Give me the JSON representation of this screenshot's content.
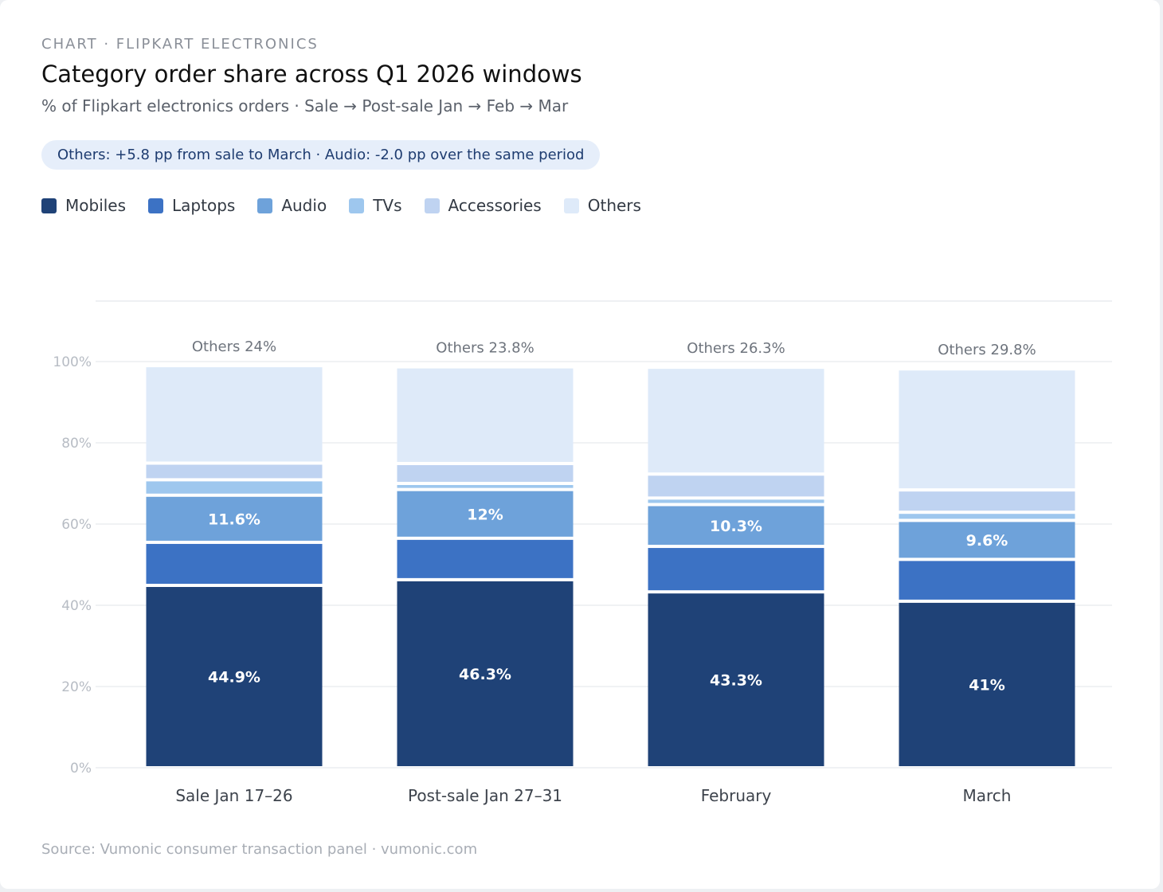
{
  "header": {
    "eyebrow": "CHART · FLIPKART ELECTRONICS",
    "title": "Category order share across Q1 2026 windows",
    "subtitle": "% of Flipkart electronics orders · Sale → Post-sale Jan → Feb → Mar",
    "callout": "Others: +5.8 pp from sale to March · Audio: -2.0 pp over the same period"
  },
  "footer": {
    "source": "Source: Vumonic consumer transaction panel · vumonic.com"
  },
  "colors": {
    "Mobiles": "#1f4277",
    "Laptops": "#3c72c4",
    "Audio": "#6ea2da",
    "TVs": "#9ec7ee",
    "Accessories": "#bfd3f1",
    "Others": "#deeaf9"
  },
  "chart_data": {
    "type": "bar",
    "stacked": true,
    "categories": [
      "Sale Jan 17–26",
      "Post-sale Jan 27–31",
      "February",
      "March"
    ],
    "ylim": [
      0,
      100
    ],
    "yticks": [
      "0%",
      "20%",
      "40%",
      "60%",
      "80%",
      "100%"
    ],
    "grid": true,
    "legend": "top-left",
    "series": [
      {
        "name": "Mobiles",
        "values": [
          44.9,
          46.3,
          43.3,
          41.0
        ],
        "labels": [
          "44.9%",
          "46.3%",
          "43.3%",
          "41%"
        ]
      },
      {
        "name": "Laptops",
        "values": [
          10.6,
          10.2,
          11.2,
          10.3
        ],
        "labels": [
          "",
          "",
          "",
          ""
        ]
      },
      {
        "name": "Audio",
        "values": [
          11.6,
          12.0,
          10.3,
          9.6
        ],
        "labels": [
          "11.6%",
          "12%",
          "10.3%",
          "9.6%"
        ]
      },
      {
        "name": "TVs",
        "values": [
          3.8,
          1.5,
          1.6,
          2.0
        ],
        "labels": [
          "",
          "",
          "",
          ""
        ]
      },
      {
        "name": "Accessories",
        "values": [
          4.1,
          4.9,
          5.9,
          5.5
        ],
        "labels": [
          "",
          "",
          "",
          ""
        ]
      },
      {
        "name": "Others",
        "values": [
          24.0,
          23.8,
          26.3,
          29.8
        ],
        "labels": [
          "",
          "",
          "",
          ""
        ]
      }
    ],
    "top_labels": [
      "Others 24%",
      "Others 23.8%",
      "Others 26.3%",
      "Others 29.8%"
    ]
  }
}
